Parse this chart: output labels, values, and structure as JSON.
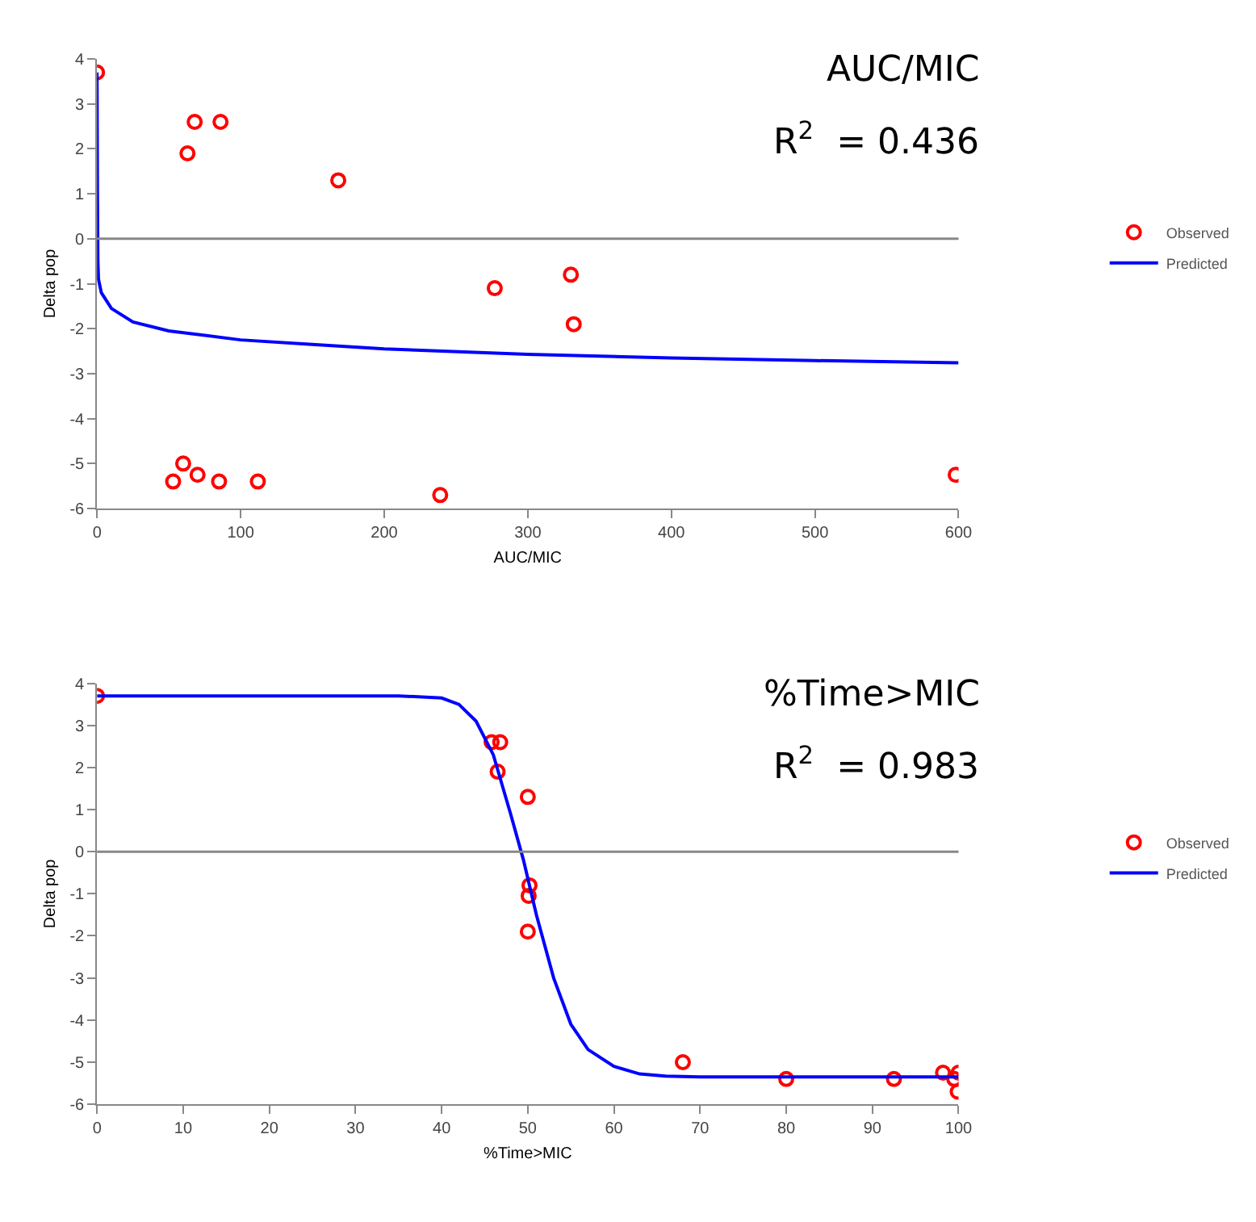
{
  "chart_data": [
    {
      "type": "scatter",
      "xlabel": "AUC/MIC",
      "ylabel": "Delta pop",
      "annotations": [
        "AUC/MIC",
        "R$^{2}$  = 0.436"
      ],
      "xlim": [
        0,
        600
      ],
      "xticks": [
        0,
        100,
        200,
        300,
        400,
        500,
        600
      ],
      "ylim": [
        -6,
        4
      ],
      "yticks": [
        -6,
        -5,
        -4,
        -3,
        -2,
        -1,
        0,
        1,
        2,
        3,
        4
      ],
      "legend": "right",
      "ref_lines": [
        {
          "axis": "y",
          "value": 0,
          "color": "#888888"
        }
      ],
      "series": [
        {
          "name": "Observed",
          "marker": "circle",
          "color": "#ff0000",
          "x": [
            0,
            63,
            68,
            86,
            168,
            277,
            330,
            332,
            53,
            60,
            70,
            85,
            112,
            239,
            598
          ],
          "values": [
            3.7,
            1.9,
            2.6,
            2.6,
            1.3,
            -1.1,
            -0.8,
            -1.9,
            -5.4,
            -5.0,
            -5.25,
            -5.4,
            -5.4,
            -5.7,
            -5.25
          ]
        },
        {
          "name": "Predicted",
          "type": "line",
          "line_style": "solid",
          "color": "#0000ff",
          "x": [
            0,
            0.3,
            0.6,
            1,
            3,
            10,
            25,
            50,
            100,
            150,
            200,
            300,
            400,
            500,
            600
          ],
          "values": [
            3.7,
            1.0,
            -0.5,
            -0.9,
            -1.2,
            -1.55,
            -1.85,
            -2.05,
            -2.25,
            -2.35,
            -2.45,
            -2.57,
            -2.65,
            -2.71,
            -2.76
          ]
        }
      ]
    },
    {
      "type": "scatter",
      "xlabel": "%Time>MIC",
      "ylabel": "Delta pop",
      "annotations": [
        "%Time>MIC",
        "R$^{2}$  = 0.983"
      ],
      "xlim": [
        0,
        100
      ],
      "xticks": [
        0,
        10,
        20,
        30,
        40,
        50,
        60,
        70,
        80,
        90,
        100
      ],
      "ylim": [
        -6,
        4
      ],
      "yticks": [
        -6,
        -5,
        -4,
        -3,
        -2,
        -1,
        0,
        1,
        2,
        3,
        4
      ],
      "legend": "right",
      "ref_lines": [
        {
          "axis": "y",
          "value": 0,
          "color": "#888888"
        }
      ],
      "series": [
        {
          "name": "Observed",
          "marker": "circle",
          "color": "#ff0000",
          "x": [
            0,
            45.8,
            46.8,
            46.5,
            50,
            50.2,
            50.1,
            50,
            68,
            80,
            92.5,
            98.2,
            99.5,
            100,
            99.9
          ],
          "values": [
            3.7,
            2.6,
            2.6,
            1.9,
            1.3,
            -0.8,
            -1.05,
            -1.9,
            -5.0,
            -5.4,
            -5.4,
            -5.25,
            -5.4,
            -5.25,
            -5.7
          ]
        },
        {
          "name": "Predicted",
          "type": "line",
          "line_style": "solid",
          "color": "#0000ff",
          "x": [
            0,
            35,
            40,
            42,
            44,
            46,
            48,
            49.5,
            51,
            53,
            55,
            57,
            60,
            63,
            66,
            70,
            100
          ],
          "values": [
            3.7,
            3.7,
            3.65,
            3.5,
            3.1,
            2.3,
            0.9,
            -0.2,
            -1.5,
            -3.0,
            -4.1,
            -4.7,
            -5.1,
            -5.28,
            -5.33,
            -5.35,
            -5.35
          ]
        }
      ]
    }
  ]
}
